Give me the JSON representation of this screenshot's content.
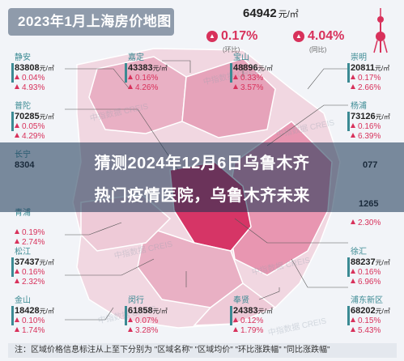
{
  "header": {
    "title": "2023年1月上海房价地图",
    "avg_price": "64942",
    "avg_unit": "元/㎡",
    "mom_change": "0.17%",
    "mom_label": "(环比)",
    "yoy_change": "4.04%",
    "yoy_label": "(同比)"
  },
  "banner": {
    "line1": "猜测2024年12月6日乌鲁木齐",
    "line2": "热门疫情医院，乌鲁木齐未来"
  },
  "watermark": "中指数据 CREIS",
  "districts": [
    {
      "name": "静安",
      "price": "83808",
      "unit": "元/㎡",
      "mom": "0.04%",
      "yoy": "4.93%"
    },
    {
      "name": "普陀",
      "price": "70285",
      "unit": "元/㎡",
      "mom": "0.05%",
      "yoy": "4.29%"
    },
    {
      "name": "长宁",
      "price": "8304",
      "unit": "",
      "mom": "",
      "yoy": ""
    },
    {
      "name": "青浦",
      "price": "",
      "unit": "",
      "mom": "0.19%",
      "yoy": "2.74%"
    },
    {
      "name": "松江",
      "price": "37437",
      "unit": "元/㎡",
      "mom": "0.16%",
      "yoy": "2.32%"
    },
    {
      "name": "金山",
      "price": "18428",
      "unit": "元/㎡",
      "mom": "0.10%",
      "yoy": "1.74%"
    },
    {
      "name": "嘉定",
      "price": "43383",
      "unit": "元/㎡",
      "mom": "0.16%",
      "yoy": "4.26%"
    },
    {
      "name": "宝山",
      "price": "48896",
      "unit": "元/㎡",
      "mom": "0.33%",
      "yoy": "3.57%"
    },
    {
      "name": "崇明",
      "price": "20811",
      "unit": "元/㎡",
      "mom": "0.17%",
      "yoy": "2.66%"
    },
    {
      "name": "杨浦",
      "price": "73126",
      "unit": "元/㎡",
      "mom": "0.16%",
      "yoy": "6.39%"
    },
    {
      "name": "",
      "price": "077",
      "unit": "",
      "mom": "",
      "yoy": ""
    },
    {
      "name": "",
      "price": "1265",
      "unit": "",
      "mom": "",
      "yoy": ""
    },
    {
      "name": "",
      "price": "",
      "unit": "",
      "mom": "",
      "yoy": "2.30%"
    },
    {
      "name": "徐汇",
      "price": "88237",
      "unit": "元/㎡",
      "mom": "0.16%",
      "yoy": "6.96%"
    },
    {
      "name": "浦东新区",
      "price": "68202",
      "unit": "元/㎡",
      "mom": "0.15%",
      "yoy": "5.43%"
    },
    {
      "name": "闵行",
      "price": "61858",
      "unit": "元/㎡",
      "mom": "0.07%",
      "yoy": "3.28%"
    },
    {
      "name": "奉贤",
      "price": "24383",
      "unit": "元/㎡",
      "mom": "0.12%",
      "yoy": "1.79%"
    }
  ],
  "footer": {
    "note": "注：区域价格信息标注从上至下分别为 \"区域名称\" \"区域均价\" \"环比涨跌幅\" \"同比涨跌幅\""
  },
  "colors": {
    "accent": "#d8315b",
    "district_label": "#3b8a93",
    "map_pink": "#e6a3ba",
    "map_red": "#d63566",
    "map_light": "#eac6d3"
  }
}
